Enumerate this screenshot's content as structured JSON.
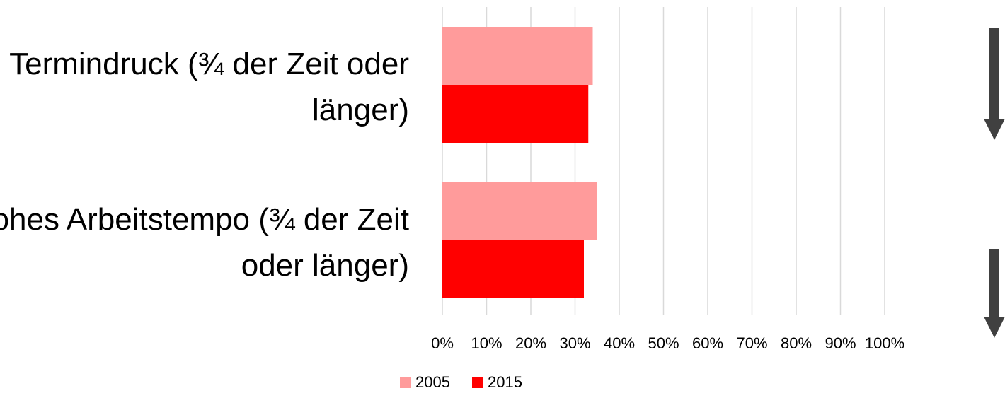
{
  "chart_data": {
    "type": "bar",
    "orientation": "horizontal",
    "categories": [
      "Termindruck (¾ der Zeit oder länger)",
      "Hohes Arbeitstempo (¾ der Zeit oder länger)"
    ],
    "series": [
      {
        "name": "2005",
        "color": "#ff9b9b",
        "values": [
          34,
          35
        ]
      },
      {
        "name": "2015",
        "color": "#ff0000",
        "values": [
          33,
          32
        ]
      }
    ],
    "xlim": [
      0,
      100
    ],
    "xticks": [
      {
        "value": 0,
        "label": "0%"
      },
      {
        "value": 10,
        "label": "10%"
      },
      {
        "value": 20,
        "label": "20%"
      },
      {
        "value": 30,
        "label": "30%"
      },
      {
        "value": 40,
        "label": "40%"
      },
      {
        "value": 50,
        "label": "50%"
      },
      {
        "value": 60,
        "label": "60%"
      },
      {
        "value": 70,
        "label": "70%"
      },
      {
        "value": 80,
        "label": "80%"
      },
      {
        "value": 90,
        "label": "90%"
      },
      {
        "value": 100,
        "label": "100%"
      }
    ],
    "grid": true,
    "legend": "bottom"
  }
}
